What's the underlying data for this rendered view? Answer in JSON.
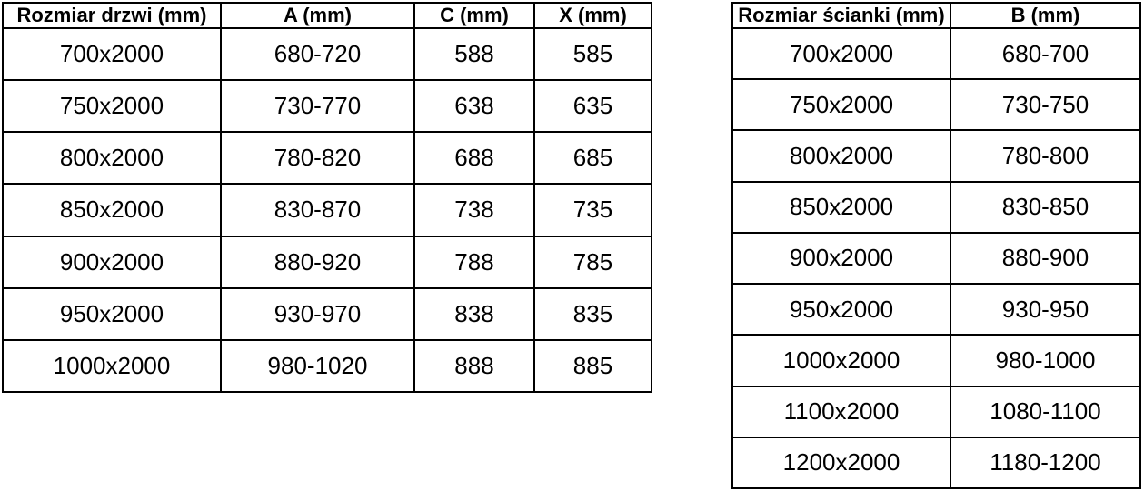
{
  "colors": {
    "background": "#ffffff",
    "border": "#000000",
    "text": "#000000"
  },
  "chart_data": [
    {
      "type": "table",
      "name": "door-sizes",
      "headers": [
        "Rozmiar drzwi (mm)",
        "A (mm)",
        "C (mm)",
        "X (mm)"
      ],
      "rows": [
        [
          "700x2000",
          "680-720",
          "588",
          "585"
        ],
        [
          "750x2000",
          "730-770",
          "638",
          "635"
        ],
        [
          "800x2000",
          "780-820",
          "688",
          "685"
        ],
        [
          "850x2000",
          "830-870",
          "738",
          "735"
        ],
        [
          "900x2000",
          "880-920",
          "788",
          "785"
        ],
        [
          "950x2000",
          "930-970",
          "838",
          "835"
        ],
        [
          "1000x2000",
          "980-1020",
          "888",
          "885"
        ]
      ]
    },
    {
      "type": "table",
      "name": "wall-sizes",
      "headers": [
        "Rozmiar ścianki (mm)",
        "B (mm)"
      ],
      "rows": [
        [
          "700x2000",
          "680-700"
        ],
        [
          "750x2000",
          "730-750"
        ],
        [
          "800x2000",
          "780-800"
        ],
        [
          "850x2000",
          "830-850"
        ],
        [
          "900x2000",
          "880-900"
        ],
        [
          "950x2000",
          "930-950"
        ],
        [
          "1000x2000",
          "980-1000"
        ],
        [
          "1100x2000",
          "1080-1100"
        ],
        [
          "1200x2000",
          "1180-1200"
        ]
      ]
    }
  ]
}
